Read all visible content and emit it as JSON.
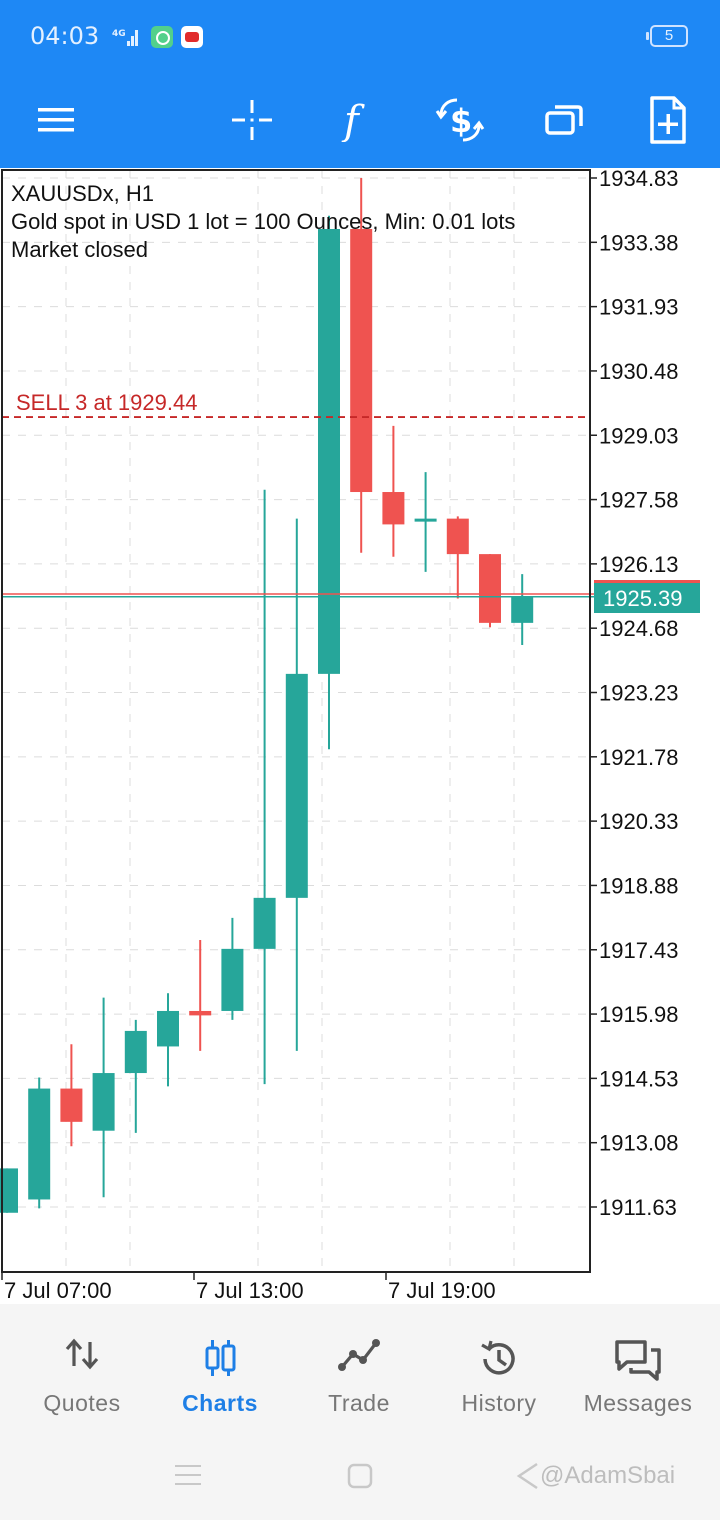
{
  "status_bar": {
    "time": "04:03",
    "network": "4G",
    "battery": "5"
  },
  "toolbar": {
    "icons": [
      "menu-icon",
      "crosshair-icon",
      "indicators-icon",
      "trade-icon",
      "windows-icon",
      "new-order-icon"
    ]
  },
  "chart": {
    "symbol_line": "XAUUSDx, H1",
    "description": "Gold spot in USD 1 lot = 100 Ounces, Min: 0.01 lots",
    "market_status": "Market closed",
    "order_line_label": "SELL 3 at 1929.44",
    "current_price": "1925.39",
    "bull_color": "#26a69a",
    "bear_color": "#ef5350",
    "order_color": "#c62828"
  },
  "chart_data": {
    "type": "candlestick",
    "title": "XAUUSDx, H1",
    "y_ticks": [
      "1934.83",
      "1933.38",
      "1931.93",
      "1930.48",
      "1929.03",
      "1927.58",
      "1926.13",
      "1924.68",
      "1923.23",
      "1921.78",
      "1920.33",
      "1918.88",
      "1917.43",
      "1915.98",
      "1914.53",
      "1913.08",
      "1911.63"
    ],
    "x_ticks": [
      "7 Jul 07:00",
      "7 Jul 13:00",
      "7 Jul 19:00"
    ],
    "ylim": [
      1910.4,
      1935.0
    ],
    "order_price": 1929.44,
    "bid": 1925.39,
    "ask": 1925.45,
    "candles": [
      {
        "open": 1911.5,
        "high": 1912.5,
        "low": 1911.5,
        "close": 1912.5
      },
      {
        "open": 1911.8,
        "high": 1914.55,
        "low": 1911.6,
        "close": 1914.3
      },
      {
        "open": 1914.3,
        "high": 1915.3,
        "low": 1913.0,
        "close": 1913.55
      },
      {
        "open": 1913.35,
        "high": 1916.35,
        "low": 1911.85,
        "close": 1914.65
      },
      {
        "open": 1914.65,
        "high": 1915.85,
        "low": 1913.3,
        "close": 1915.6
      },
      {
        "open": 1915.25,
        "high": 1916.45,
        "low": 1914.35,
        "close": 1916.05
      },
      {
        "open": 1916.05,
        "high": 1917.65,
        "low": 1915.15,
        "close": 1915.95
      },
      {
        "open": 1916.05,
        "high": 1918.15,
        "low": 1915.85,
        "close": 1917.45
      },
      {
        "open": 1917.45,
        "high": 1927.8,
        "low": 1914.4,
        "close": 1918.6
      },
      {
        "open": 1918.6,
        "high": 1927.15,
        "low": 1915.15,
        "close": 1923.65
      },
      {
        "open": 1923.65,
        "high": 1933.98,
        "low": 1921.95,
        "close": 1933.68
      },
      {
        "open": 1933.68,
        "high": 1934.83,
        "low": 1926.38,
        "close": 1927.75
      },
      {
        "open": 1927.75,
        "high": 1929.24,
        "low": 1926.29,
        "close": 1927.02
      },
      {
        "open": 1927.1,
        "high": 1928.2,
        "low": 1925.95,
        "close": 1927.15
      },
      {
        "open": 1927.15,
        "high": 1927.2,
        "low": 1925.35,
        "close": 1926.35
      },
      {
        "open": 1926.35,
        "high": 1926.35,
        "low": 1924.7,
        "close": 1924.8
      },
      {
        "open": 1924.8,
        "high": 1925.9,
        "low": 1924.3,
        "close": 1925.39
      }
    ]
  },
  "bottom_nav": {
    "items": [
      {
        "label": "Quotes",
        "icon": "quotes-icon"
      },
      {
        "label": "Charts",
        "icon": "charts-icon"
      },
      {
        "label": "Trade",
        "icon": "trade-line-icon"
      },
      {
        "label": "History",
        "icon": "history-icon"
      },
      {
        "label": "Messages",
        "icon": "messages-icon"
      }
    ],
    "active_index": 1
  },
  "watermark": "@AdamSbai"
}
